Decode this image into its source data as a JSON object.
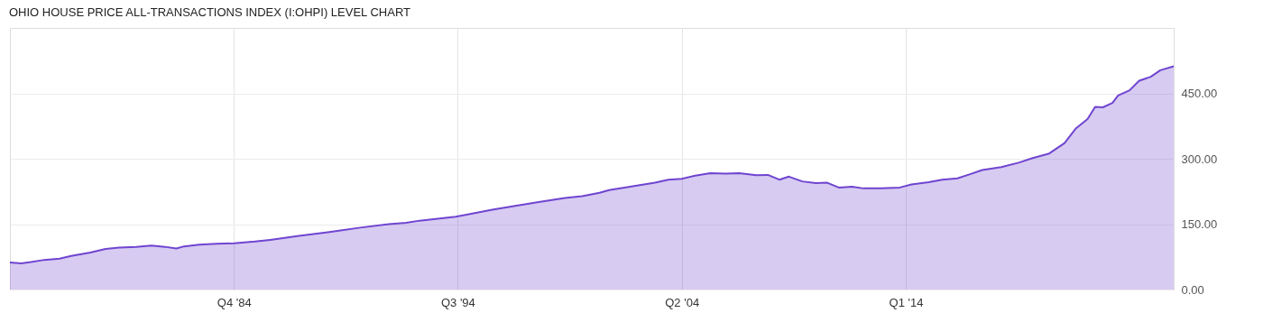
{
  "chart_data": {
    "type": "area",
    "title": "OHIO HOUSE PRICE ALL-TRANSACTIONS INDEX (I:OHPI) LEVEL CHART",
    "x": [
      "1975-01",
      "1975-07",
      "1975-12",
      "1976-07",
      "1977-03",
      "1977-09",
      "1978-07",
      "1979-03",
      "1979-10",
      "1980-07",
      "1981-03",
      "1981-10",
      "1982-04",
      "1982-08",
      "1983-04",
      "1984-01",
      "1984-10",
      "1985-09",
      "1986-05",
      "1987-08",
      "1988-12",
      "1990-04",
      "1991-07",
      "1992-04",
      "1992-11",
      "1994-06",
      "1995-02",
      "1996-01",
      "1997-01",
      "1998-02",
      "1999-03",
      "1999-12",
      "2000-09",
      "2001-02",
      "2002-01",
      "2003-02",
      "2003-09",
      "2004-04",
      "2004-11",
      "2005-07",
      "2006-03",
      "2006-10",
      "2007-07",
      "2008-01",
      "2008-07",
      "2008-12",
      "2009-07",
      "2010-02",
      "2010-08",
      "2011-02",
      "2011-09",
      "2012-03",
      "2012-12",
      "2013-10",
      "2014-04",
      "2015-01",
      "2015-08",
      "2016-04",
      "2016-11",
      "2017-05",
      "2018-03",
      "2018-12",
      "2019-07",
      "2020-04",
      "2020-12",
      "2021-06",
      "2021-12",
      "2022-04",
      "2022-08",
      "2023-01",
      "2023-04",
      "2023-10",
      "2024-03",
      "2024-09",
      "2025-02",
      "2025-09"
    ],
    "series": [
      {
        "color": "#6f45d0",
        "values": [
          62,
          60,
          63,
          68,
          71,
          77,
          85,
          93,
          96,
          98,
          101,
          98,
          94,
          99,
          103,
          105,
          106,
          110,
          114,
          123,
          132,
          142,
          150,
          153,
          158,
          167,
          174,
          183,
          192,
          201,
          210,
          214,
          222,
          228,
          236,
          245,
          252,
          254,
          261,
          267,
          266,
          267,
          262,
          263,
          252,
          259,
          248,
          244,
          245,
          234,
          236,
          232,
          232,
          234,
          241,
          246,
          252,
          255,
          265,
          274,
          281,
          291,
          301,
          312,
          336,
          370,
          391,
          419,
          418,
          428,
          445,
          457,
          479,
          488,
          503,
          512
        ]
      }
    ],
    "xlim": [
      "1975-01",
      "2025-09"
    ],
    "ylim": [
      0,
      600
    ],
    "xticks": [
      {
        "value": "1984-10",
        "label": "Q4 '84"
      },
      {
        "value": "1994-07",
        "label": "Q3 '94"
      },
      {
        "value": "2004-04",
        "label": "Q2 '04"
      },
      {
        "value": "2014-01",
        "label": "Q1 '14"
      }
    ],
    "yticks": [
      {
        "value": 0,
        "label": "0.00"
      },
      {
        "value": 150,
        "label": "150.00"
      },
      {
        "value": 300,
        "label": "300.00"
      },
      {
        "value": 450,
        "label": "450.00"
      }
    ],
    "grid": true
  }
}
